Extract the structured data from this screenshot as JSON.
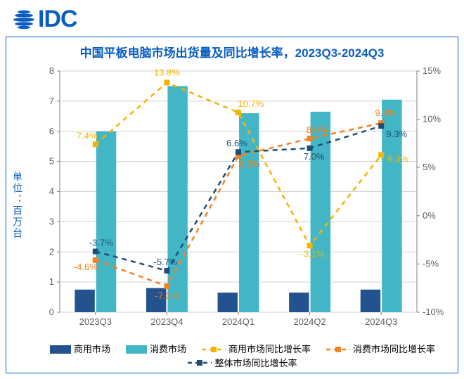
{
  "logo": {
    "text": "IDC",
    "color": "#0a5ec0",
    "icon_color": "#0a5ec0"
  },
  "frame": {
    "border_color": "#0a5ec0"
  },
  "title": {
    "text": "中国平板电脑市场出货量及同比增长率，2023Q3-2024Q3",
    "color": "#0a5ec0",
    "fontsize": 17
  },
  "chart": {
    "type": "bar+line-dual-axis",
    "categories": [
      "2023Q3",
      "2023Q4",
      "2024Q1",
      "2024Q2",
      "2024Q3"
    ],
    "y_left": {
      "label": "单位：百万台",
      "min": 0,
      "max": 8,
      "step": 1,
      "label_color": "#0a5ec0",
      "tick_color": "#606060",
      "fontsize": 13
    },
    "y_right": {
      "min": -10,
      "max": 15,
      "step": 5,
      "suffix": "%",
      "tick_color": "#606060",
      "fontsize": 13
    },
    "x_axis": {
      "fontsize": 13,
      "color": "#606060"
    },
    "grid_color": "#d0d0d0",
    "axis_line_color": "#808080",
    "bars": {
      "commercial": {
        "label": "商用市场",
        "color": "#23538f",
        "values": [
          0.75,
          0.8,
          0.65,
          0.65,
          0.75
        ]
      },
      "consumer": {
        "label": "消费市场",
        "color": "#42b6c4",
        "values": [
          6.0,
          7.5,
          6.6,
          6.65,
          7.05
        ]
      },
      "bar_width_frac": 0.28,
      "gap_frac": 0.02
    },
    "lines": {
      "commercial_yoy": {
        "label": "商用市场同比增长率",
        "color": "#f5b400",
        "dash": "7,6",
        "width": 2.5,
        "marker": "square",
        "values": [
          7.4,
          13.8,
          10.7,
          -3.1,
          6.3
        ],
        "text_values": [
          "7.4%",
          "13.8%",
          "10.7%",
          "-3.1%",
          "6.3%"
        ]
      },
      "consumer_yoy": {
        "label": "消费市场同比增长率",
        "color": "#f58220",
        "dash": "7,6",
        "width": 2.5,
        "marker": "square",
        "values": [
          -4.6,
          -7.3,
          6.2,
          8.0,
          9.6
        ],
        "text_values": [
          "-4.6%",
          "-7.3%",
          "6.2%",
          "8.0%",
          "9.6%"
        ]
      },
      "total_yoy": {
        "label": "整体市场同比增长率",
        "color": "#1f4e79",
        "dash": "7,6",
        "width": 2.5,
        "marker": "square",
        "values": [
          -3.7,
          -5.7,
          6.6,
          7.0,
          9.3
        ],
        "text_values": [
          "-3.7%",
          "-5.7%",
          "6.6%",
          "7.0%",
          "9.3%"
        ]
      }
    },
    "data_label": {
      "fontsize": 13
    },
    "legend": {
      "fontsize": 13,
      "order": [
        "commercial",
        "consumer",
        "commercial_yoy",
        "consumer_yoy",
        "total_yoy"
      ]
    }
  }
}
